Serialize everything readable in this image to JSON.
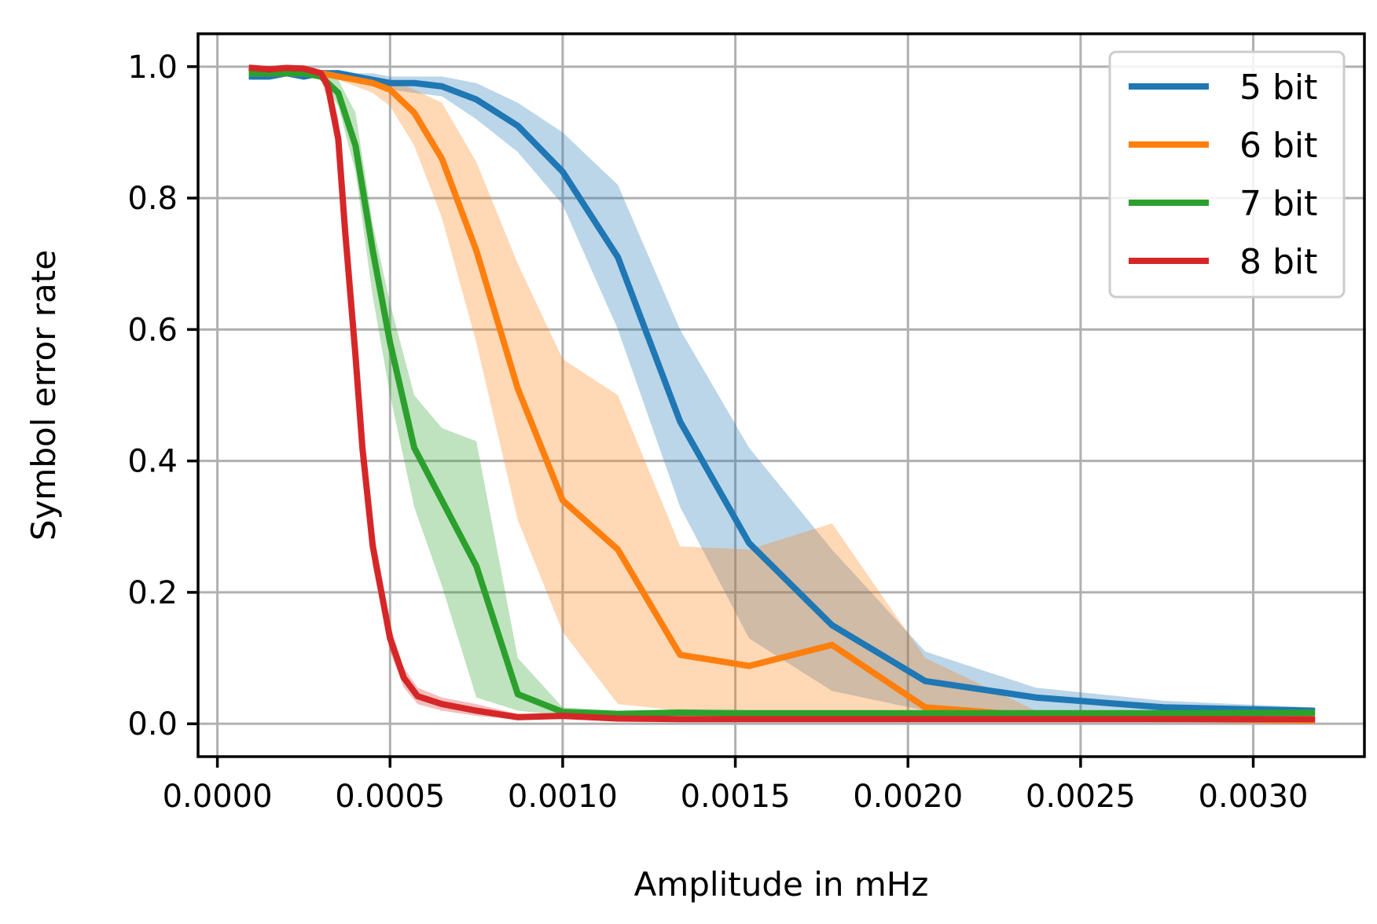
{
  "chart_data": {
    "type": "line",
    "xlabel": "Amplitude in mHz",
    "ylabel": "Symbol error rate",
    "xlim": [
      -5.6e-05,
      0.003322
    ],
    "ylim": [
      -0.05,
      1.05
    ],
    "xticks": [
      0.0,
      0.0005,
      0.001,
      0.0015,
      0.002,
      0.0025,
      0.003
    ],
    "xtick_labels": [
      "0.0000",
      "0.0005",
      "0.0010",
      "0.0015",
      "0.0020",
      "0.0025",
      "0.0030"
    ],
    "yticks": [
      0.0,
      0.2,
      0.4,
      0.6,
      0.8,
      1.0
    ],
    "ytick_labels": [
      "0.0",
      "0.2",
      "0.4",
      "0.6",
      "0.8",
      "1.0"
    ],
    "grid": true,
    "legend_position": "top-right",
    "series": [
      {
        "name": "5 bit",
        "color": "#1f77b4",
        "x": [
          0.0001,
          0.00015,
          0.0002,
          0.00025,
          0.0003,
          0.00035,
          0.0004,
          0.00045,
          0.0005,
          0.00057,
          0.00065,
          0.00075,
          0.00087,
          0.001,
          0.00116,
          0.00134,
          0.00154,
          0.00178,
          0.00205,
          0.00237,
          0.00274,
          0.00317
        ],
        "values": [
          0.985,
          0.985,
          0.99,
          0.985,
          0.99,
          0.99,
          0.985,
          0.98,
          0.975,
          0.975,
          0.97,
          0.95,
          0.91,
          0.84,
          0.71,
          0.46,
          0.275,
          0.15,
          0.065,
          0.04,
          0.025,
          0.02
        ],
        "lower": [
          0.98,
          0.98,
          0.985,
          0.98,
          0.985,
          0.985,
          0.98,
          0.97,
          0.965,
          0.96,
          0.955,
          0.92,
          0.87,
          0.79,
          0.6,
          0.33,
          0.13,
          0.05,
          0.02,
          0.015,
          0.012,
          0.01
        ],
        "upper": [
          0.99,
          0.99,
          0.995,
          0.99,
          0.995,
          0.995,
          0.99,
          0.99,
          0.985,
          0.985,
          0.985,
          0.975,
          0.945,
          0.9,
          0.82,
          0.6,
          0.42,
          0.265,
          0.11,
          0.055,
          0.035,
          0.025
        ]
      },
      {
        "name": "6 bit",
        "color": "#ff7f0e",
        "x": [
          0.0001,
          0.00015,
          0.0002,
          0.00025,
          0.0003,
          0.00035,
          0.0004,
          0.00045,
          0.0005,
          0.00057,
          0.00065,
          0.00075,
          0.00087,
          0.001,
          0.00116,
          0.00134,
          0.00154,
          0.00178,
          0.00205,
          0.00237,
          0.00274,
          0.00317
        ],
        "values": [
          0.99,
          0.99,
          0.99,
          0.99,
          0.99,
          0.985,
          0.98,
          0.975,
          0.965,
          0.93,
          0.86,
          0.72,
          0.51,
          0.34,
          0.265,
          0.105,
          0.088,
          0.12,
          0.025,
          0.012,
          0.008,
          0.005
        ],
        "lower": [
          0.985,
          0.985,
          0.985,
          0.985,
          0.985,
          0.98,
          0.97,
          0.96,
          0.94,
          0.88,
          0.77,
          0.58,
          0.31,
          0.14,
          0.03,
          0.02,
          0.02,
          0.01,
          0.01,
          0.005,
          0.002,
          0.0
        ],
        "upper": [
          0.995,
          0.995,
          0.995,
          0.995,
          0.995,
          0.99,
          0.985,
          0.985,
          0.98,
          0.965,
          0.945,
          0.855,
          0.7,
          0.555,
          0.5,
          0.27,
          0.265,
          0.305,
          0.1,
          0.02,
          0.015,
          0.01
        ]
      },
      {
        "name": "7 bit",
        "color": "#2ca02c",
        "x": [
          0.0001,
          0.00015,
          0.0002,
          0.00025,
          0.0003,
          0.00035,
          0.0004,
          0.00045,
          0.0005,
          0.00057,
          0.00065,
          0.00075,
          0.00087,
          0.001,
          0.00116,
          0.00134,
          0.00154,
          0.00178,
          0.00205,
          0.00237,
          0.00274,
          0.00317
        ],
        "values": [
          0.99,
          0.99,
          0.99,
          0.99,
          0.985,
          0.96,
          0.88,
          0.72,
          0.58,
          0.42,
          0.34,
          0.24,
          0.045,
          0.018,
          0.015,
          0.017,
          0.016,
          0.016,
          0.016,
          0.016,
          0.016,
          0.017
        ],
        "lower": [
          0.985,
          0.985,
          0.985,
          0.985,
          0.98,
          0.94,
          0.84,
          0.65,
          0.5,
          0.33,
          0.21,
          0.04,
          0.02,
          0.012,
          0.01,
          0.012,
          0.012,
          0.012,
          0.012,
          0.012,
          0.012,
          0.012
        ],
        "upper": [
          0.995,
          0.995,
          0.995,
          0.995,
          0.99,
          0.98,
          0.93,
          0.76,
          0.64,
          0.5,
          0.45,
          0.43,
          0.1,
          0.025,
          0.02,
          0.022,
          0.02,
          0.02,
          0.02,
          0.02,
          0.02,
          0.022
        ]
      },
      {
        "name": "8 bit",
        "color": "#d62728",
        "x": [
          0.0001,
          0.00015,
          0.0002,
          0.00025,
          0.0003,
          0.00032,
          0.00035,
          0.00037,
          0.0004,
          0.00042,
          0.00045,
          0.0005,
          0.00054,
          0.00058,
          0.00065,
          0.00075,
          0.00087,
          0.001,
          0.00116,
          0.00134,
          0.00154,
          0.00178,
          0.00205,
          0.00237,
          0.00274,
          0.00317
        ],
        "values": [
          0.998,
          0.996,
          0.998,
          0.997,
          0.99,
          0.97,
          0.89,
          0.75,
          0.56,
          0.42,
          0.27,
          0.13,
          0.07,
          0.042,
          0.03,
          0.02,
          0.01,
          0.012,
          0.008,
          0.007,
          0.007,
          0.007,
          0.007,
          0.007,
          0.007,
          0.007
        ],
        "lower": [
          0.993,
          0.99,
          0.993,
          0.992,
          0.98,
          0.95,
          0.86,
          0.7,
          0.51,
          0.38,
          0.24,
          0.11,
          0.055,
          0.03,
          0.02,
          0.012,
          0.006,
          0.008,
          0.005,
          0.004,
          0.004,
          0.004,
          0.004,
          0.004,
          0.004,
          0.004
        ],
        "upper": [
          1.0,
          1.0,
          1.0,
          1.0,
          0.995,
          0.985,
          0.92,
          0.8,
          0.6,
          0.46,
          0.3,
          0.15,
          0.085,
          0.055,
          0.04,
          0.03,
          0.015,
          0.016,
          0.012,
          0.01,
          0.01,
          0.01,
          0.01,
          0.01,
          0.01,
          0.01
        ]
      }
    ]
  }
}
